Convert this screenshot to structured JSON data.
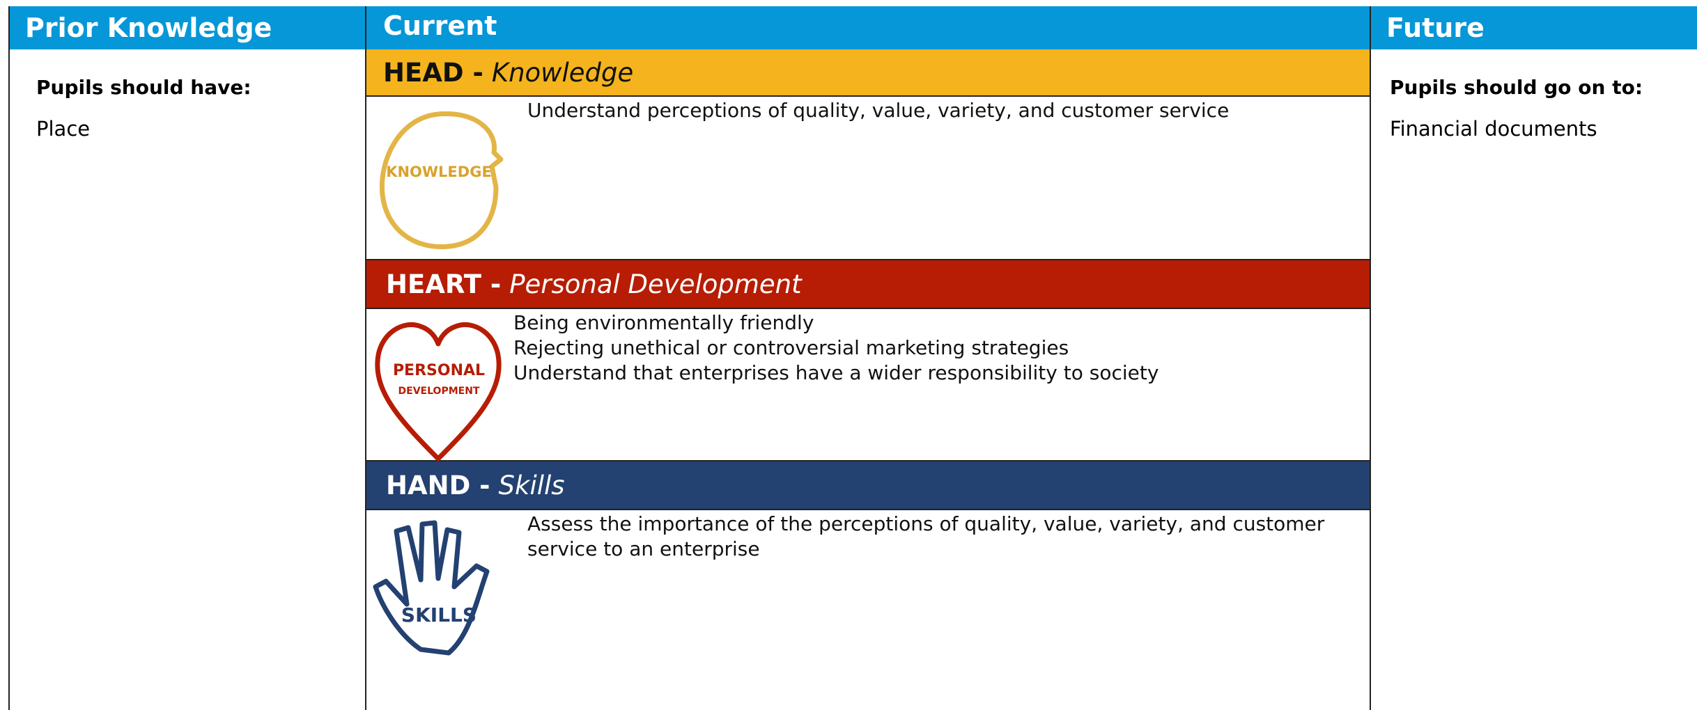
{
  "columns": {
    "prior": {
      "title": "Prior Knowledge",
      "heading": "Pupils should have:",
      "items": [
        "Place"
      ]
    },
    "current": {
      "title": "Current"
    },
    "future": {
      "title": "Future",
      "heading": "Pupils should go on to:",
      "items": [
        "Financial documents"
      ]
    }
  },
  "sections": [
    {
      "label": "HEAD -",
      "subtitle": "Knowledge",
      "icon_text": [
        "KNOWLEDGE"
      ],
      "lines": [
        "Understand perceptions of quality, value, variety, and customer service"
      ]
    },
    {
      "label": "HEART -",
      "subtitle": "Personal Development",
      "icon_text": [
        "PERSONAL",
        "DEVELOPMENT"
      ],
      "lines": [
        "Being environmentally friendly",
        "Rejecting unethical or controversial marketing strategies",
        "Understand that enterprises have a wider responsibility to society"
      ]
    },
    {
      "label": "HAND -",
      "subtitle": "Skills",
      "icon_text": [
        "SKILLS"
      ],
      "lines": [
        "Assess the importance of the perceptions of quality, value, variety, and customer service to an enterprise"
      ]
    }
  ]
}
